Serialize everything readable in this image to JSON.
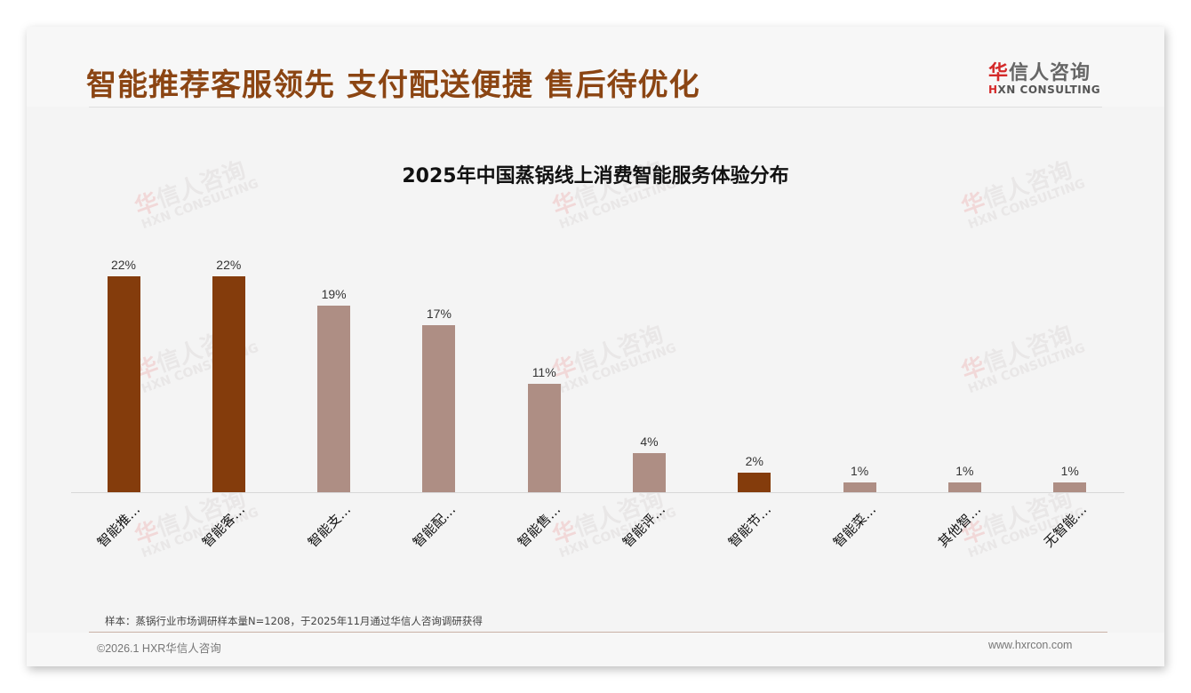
{
  "headline": "智能推荐客服领先 支付配送便捷 售后待优化",
  "logo": {
    "cn_first": "华",
    "cn_rest": "信人咨询",
    "en_first": "H",
    "en_rest": "XN CONSULTING"
  },
  "watermark": {
    "cn_first": "华",
    "cn_rest": "信人咨询",
    "en": "HXN CONSULTING"
  },
  "note": "样本：蒸锅行业市场调研样本量N=1208，于2025年11月通过华信人咨询调研获得",
  "footer": {
    "copyright": "©2026.1 HXR华信人咨询",
    "website": "www.hxrcon.com"
  },
  "colors": {
    "highlight": "#843c0c",
    "normal": "#ae8e84",
    "headline": "#8b4513"
  },
  "chart_data": {
    "type": "bar",
    "title": "2025年中国蒸锅线上消费智能服务体验分布",
    "xlabel": "",
    "ylabel": "",
    "ylim": [
      0,
      22
    ],
    "grid": false,
    "legend": "none",
    "categories": [
      "智能推…",
      "智能客…",
      "智能支…",
      "智能配…",
      "智能售…",
      "智能评…",
      "智能节…",
      "智能菜…",
      "其他智…",
      "无智能…"
    ],
    "values": [
      22,
      22,
      19,
      17,
      11,
      4,
      2,
      1,
      1,
      1
    ],
    "value_labels": [
      "22%",
      "22%",
      "19%",
      "17%",
      "11%",
      "4%",
      "2%",
      "1%",
      "1%",
      "1%"
    ],
    "highlighted": [
      true,
      true,
      false,
      false,
      false,
      false,
      true,
      false,
      false,
      false
    ]
  }
}
